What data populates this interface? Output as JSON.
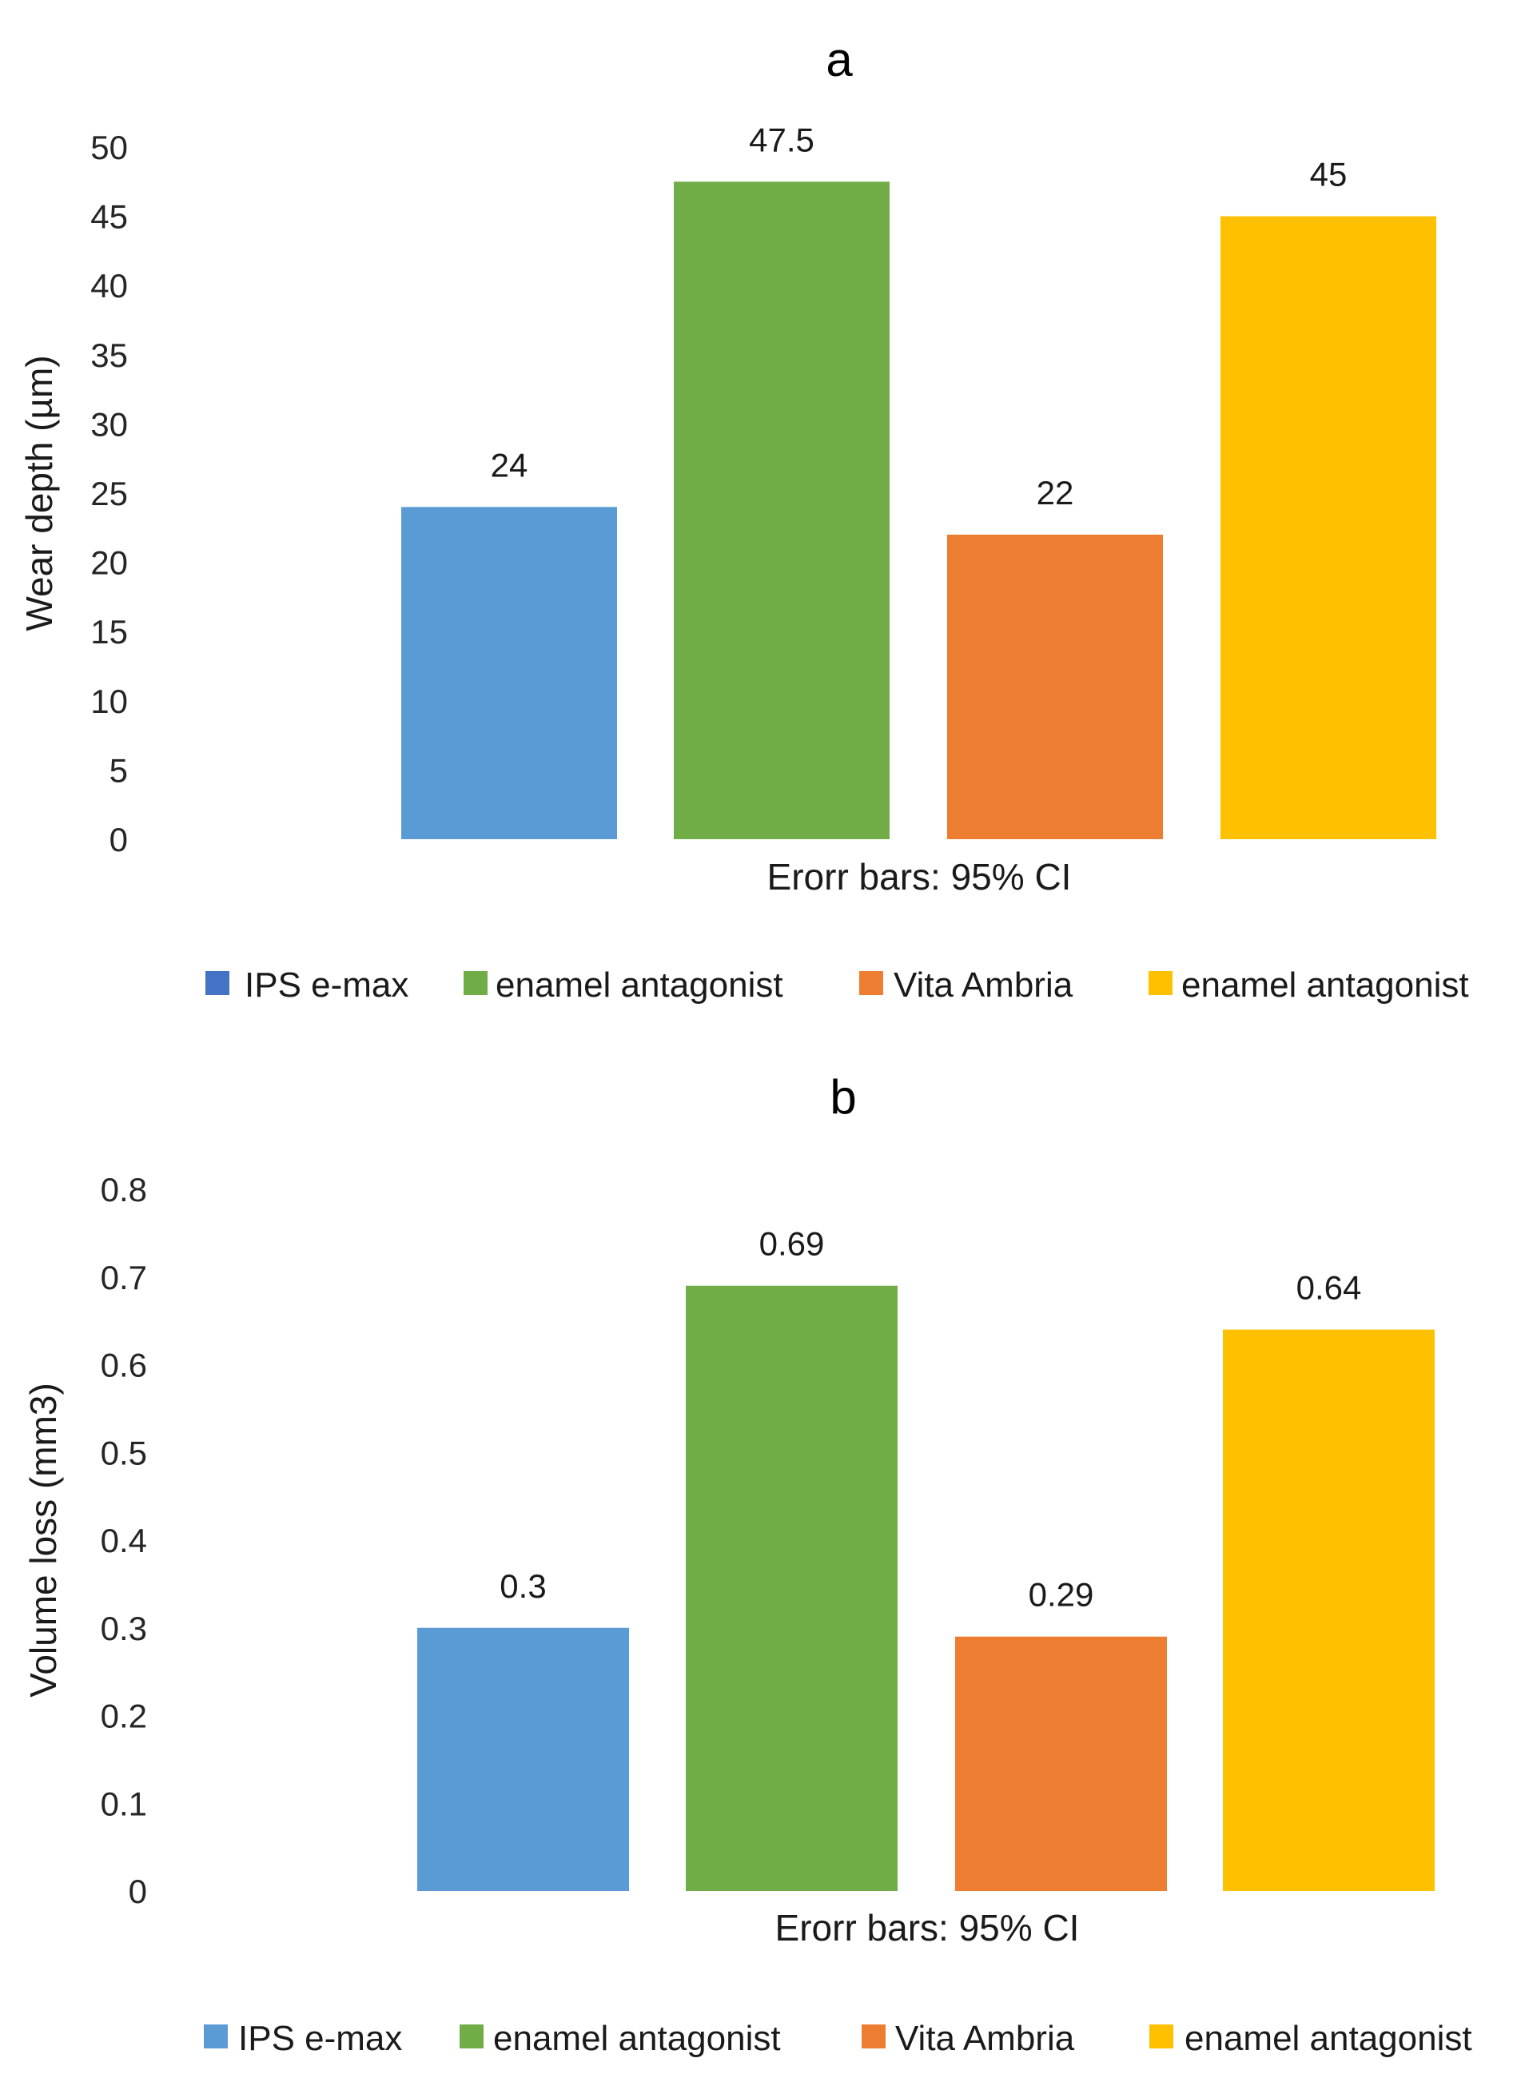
{
  "chart_data": [
    {
      "type": "bar",
      "title": "a",
      "ylabel": "Wear depth (µm)",
      "xlabel": "Erorr bars: 95% CI",
      "ylim": [
        0,
        50
      ],
      "yticks": [
        0,
        5,
        10,
        15,
        20,
        25,
        30,
        35,
        40,
        45,
        50
      ],
      "grid": false,
      "legend_position": "bottom",
      "series": [
        {
          "name": "IPS e-max",
          "color": "#5b9bd5",
          "legend_color": "#4472c4",
          "value": 24,
          "label": "24"
        },
        {
          "name": "enamel antagonist",
          "color": "#70ad47",
          "legend_color": "#70ad47",
          "value": 47.5,
          "label": "47.5"
        },
        {
          "name": "Vita Ambria",
          "color": "#ed7d31",
          "legend_color": "#ed7d31",
          "value": 22,
          "label": "22"
        },
        {
          "name": "enamel antagonist",
          "color": "#ffc000",
          "legend_color": "#ffc000",
          "value": 45,
          "label": "45"
        }
      ]
    },
    {
      "type": "bar",
      "title": "b",
      "ylabel": "Volume loss (mm3)",
      "xlabel": "Erorr bars: 95% CI",
      "ylim": [
        0,
        0.8
      ],
      "yticks": [
        0,
        0.1,
        0.2,
        0.3,
        0.4,
        0.5,
        0.6,
        0.7,
        0.8
      ],
      "grid": false,
      "legend_position": "bottom",
      "series": [
        {
          "name": "IPS e-max",
          "color": "#5b9bd5",
          "legend_color": "#5b9bd5",
          "value": 0.3,
          "label": "0.3"
        },
        {
          "name": "enamel antagonist",
          "color": "#70ad47",
          "legend_color": "#70ad47",
          "value": 0.69,
          "label": "0.69"
        },
        {
          "name": "Vita Ambria",
          "color": "#ed7d31",
          "legend_color": "#ed7d31",
          "value": 0.29,
          "label": "0.29"
        },
        {
          "name": "enamel antagonist",
          "color": "#ffc000",
          "legend_color": "#ffc000",
          "value": 0.64,
          "label": "0.64"
        }
      ]
    }
  ]
}
